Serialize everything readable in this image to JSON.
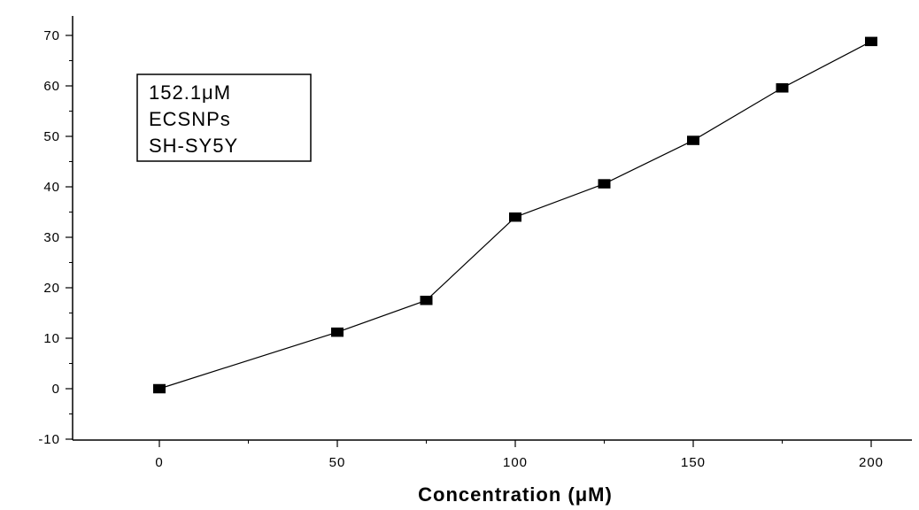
{
  "chart_data": {
    "type": "line",
    "title": "",
    "xlabel": "Concentration (μM)",
    "ylabel": "",
    "xlim": [
      -20,
      212
    ],
    "ylim": [
      -10,
      75
    ],
    "x_ticks": [
      0,
      50,
      100,
      150,
      200
    ],
    "y_ticks": [
      -10,
      0,
      10,
      20,
      30,
      40,
      50,
      60,
      70
    ],
    "grid": false,
    "legend": "none",
    "series": [
      {
        "color": "#000000",
        "marker": "square",
        "points": [
          {
            "x": 0,
            "y": 0
          },
          {
            "x": 50,
            "y": 11.2
          },
          {
            "x": 75,
            "y": 17.5
          },
          {
            "x": 100,
            "y": 34
          },
          {
            "x": 125,
            "y": 40.6
          },
          {
            "x": 150,
            "y": 49.2
          },
          {
            "x": 175,
            "y": 59.6
          },
          {
            "x": 200,
            "y": 68.8
          }
        ]
      }
    ],
    "annotation": {
      "lines": [
        "152.1μM",
        "ECSNPs",
        "SH-SY5Y"
      ],
      "placement": "top-left"
    }
  }
}
